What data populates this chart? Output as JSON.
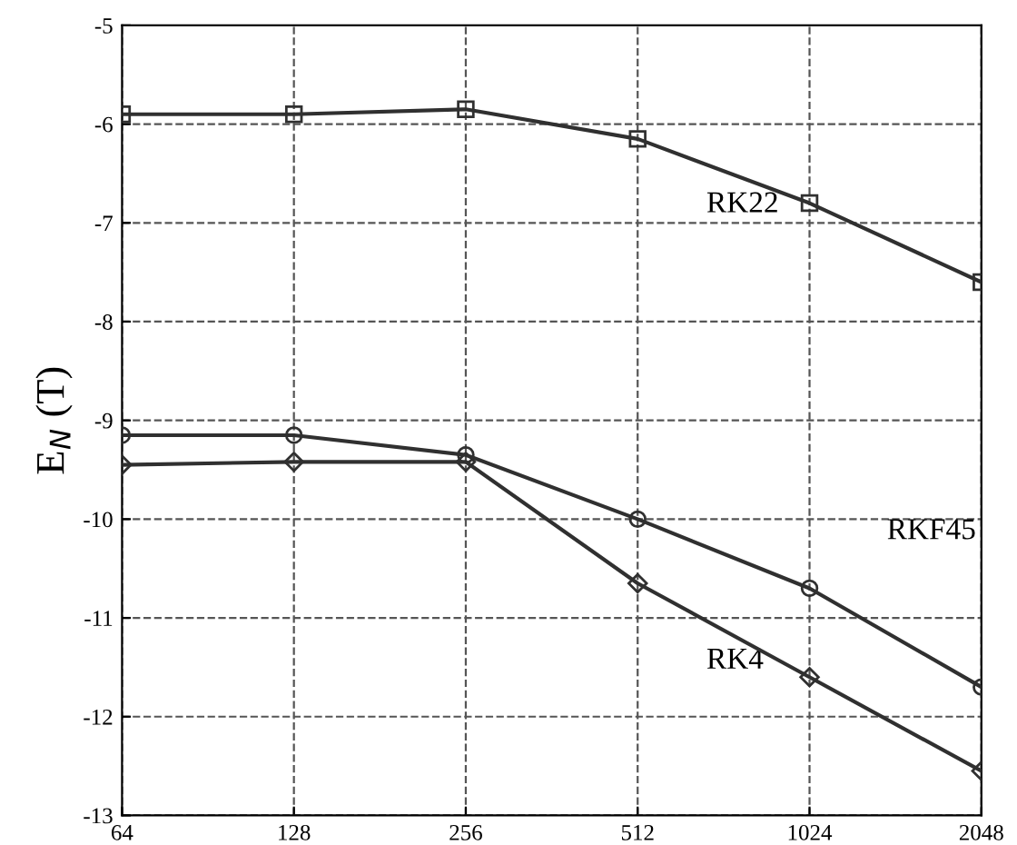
{
  "chart_data": {
    "type": "line",
    "ylabel": "E$_{N}$ (T)",
    "categories": [
      "64",
      "128",
      "256",
      "512",
      "1024",
      "2048"
    ],
    "ylim": [
      -13,
      -5
    ],
    "yticks": [
      -13,
      -12,
      -11,
      -10,
      -9,
      -8,
      -7,
      -6,
      -5
    ],
    "grid": true,
    "line_style": "solid",
    "series": [
      {
        "name": "RK22",
        "color": "#303030",
        "marker": "square",
        "values": [
          -5.9,
          -5.9,
          -5.85,
          -6.15,
          -6.8,
          -7.6
        ]
      },
      {
        "name": "RKF45",
        "color": "#303030",
        "marker": "circle",
        "values": [
          -9.15,
          -9.15,
          -9.35,
          -10.0,
          -10.7,
          -11.7
        ]
      },
      {
        "name": "RK4",
        "color": "#303030",
        "marker": "diamond",
        "values": [
          -9.45,
          -9.42,
          -9.42,
          -10.65,
          -11.6,
          -12.55
        ]
      }
    ]
  }
}
